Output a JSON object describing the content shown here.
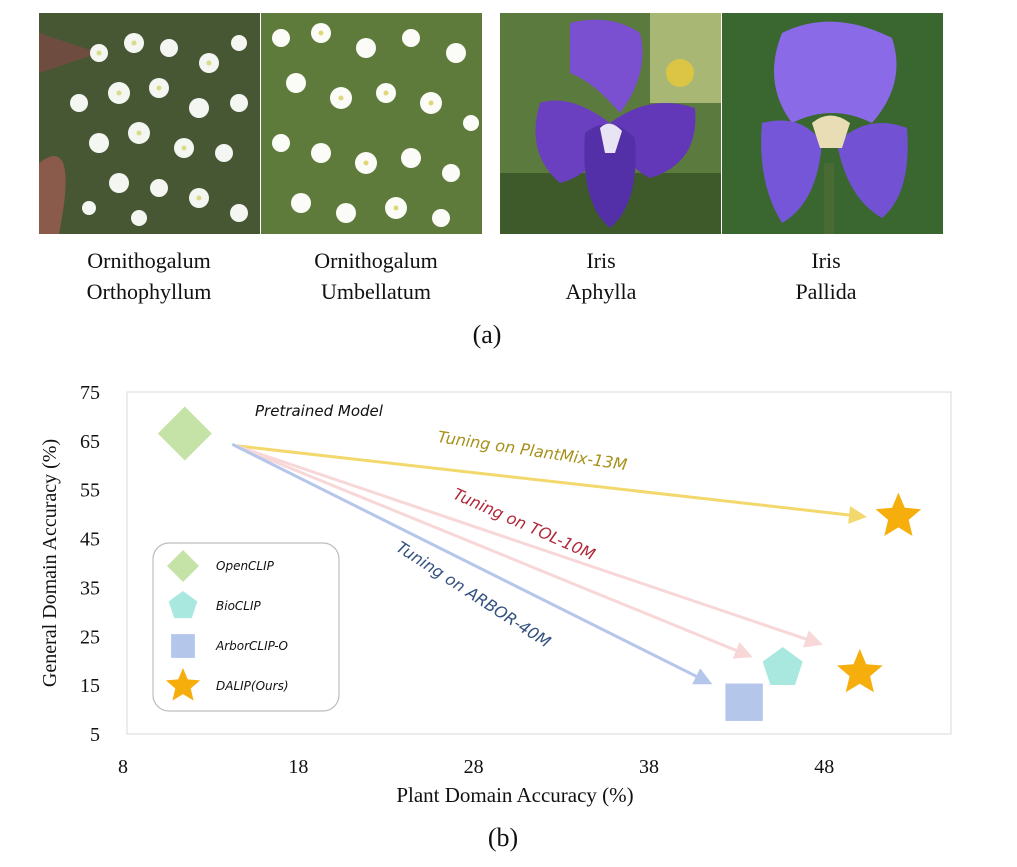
{
  "panel_a": {
    "label": "(a)",
    "species": [
      {
        "genus": "Ornithogalum",
        "epithet": "Orthophyllum"
      },
      {
        "genus": "Ornithogalum",
        "epithet": "Umbellatum"
      },
      {
        "genus": "Iris",
        "epithet": "Aphylla"
      },
      {
        "genus": "Iris",
        "epithet": "Pallida"
      }
    ]
  },
  "panel_b": {
    "label": "(b)"
  },
  "chart_data": {
    "type": "scatter",
    "xlabel": "Plant Domain Accuracy (%)",
    "ylabel": "General Domain Accuracy (%)",
    "xlim": [
      8,
      55
    ],
    "ylim": [
      5,
      75
    ],
    "xticks": [
      8,
      18,
      28,
      38,
      48
    ],
    "yticks": [
      75,
      65,
      55,
      45,
      35,
      25,
      15,
      5
    ],
    "grid": false,
    "legend_position": "left",
    "annotation": "Pretrained Model",
    "series": [
      {
        "name": "OpenCLIP",
        "marker": "diamond",
        "color": "#c5e3a6",
        "points": [
          [
            11.3,
            66.5
          ]
        ]
      },
      {
        "name": "BioCLIP",
        "marker": "pentagon",
        "color": "#a9e8df",
        "points": [
          [
            45.4,
            18.5
          ]
        ]
      },
      {
        "name": "ArborCLIP-O",
        "marker": "square",
        "color": "#b4c6ea",
        "points": [
          [
            43.2,
            11.5
          ]
        ]
      },
      {
        "name": "DALIP(Ours)",
        "marker": "star",
        "color": "#f6ae0c",
        "points": [
          [
            52.0,
            49.5
          ],
          [
            49.8,
            17.5
          ]
        ]
      }
    ],
    "arrows": [
      {
        "label": "Tuning on PlantMix-13M",
        "color": "#f3d86e",
        "text_color": "#a8901b",
        "from": [
          14.2,
          64.0
        ],
        "to": [
          50.0,
          49.5
        ]
      },
      {
        "label": "Tuning on TOL-10M",
        "color": "#f8d7d9",
        "text_color": "#b0283a",
        "from": [
          14.2,
          64.0
        ],
        "to": [
          47.5,
          23.5
        ]
      },
      {
        "label": "",
        "color": "#f8d7d9",
        "text_color": "#b0283a",
        "from": [
          14.2,
          64.0
        ],
        "to": [
          43.5,
          21.0
        ]
      },
      {
        "label": "Tuning on ARBOR-40M",
        "color": "#b4c6ea",
        "text_color": "#33507e",
        "from": [
          14.0,
          64.3
        ],
        "to": [
          41.2,
          15.5
        ]
      }
    ]
  }
}
